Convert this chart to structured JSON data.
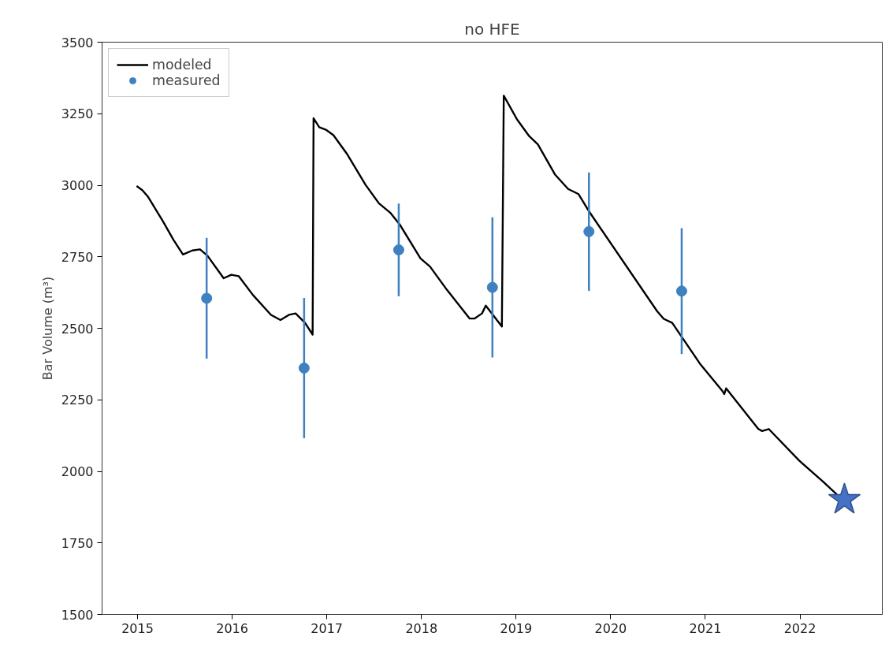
{
  "chart_data": {
    "type": "line",
    "title": "no HFE",
    "ylabel": "Bar Volume (m³)",
    "xlim": [
      2014.625,
      2022.87
    ],
    "ylim": [
      1500,
      3500
    ],
    "xticks": [
      2015,
      2016,
      2017,
      2018,
      2019,
      2020,
      2021,
      2022
    ],
    "yticks": [
      1500,
      1750,
      2000,
      2250,
      2500,
      2750,
      3000,
      3250,
      3500
    ],
    "grid": false,
    "legend": "top left",
    "series": [
      {
        "name": "modeled",
        "color": "#000000",
        "marker": "none",
        "line_style": "solid",
        "x": [
          2014.99,
          2015.05,
          2015.11,
          2015.27,
          2015.38,
          2015.48,
          2015.58,
          2015.66,
          2015.74,
          2015.91,
          2015.99,
          2016.07,
          2016.22,
          2016.41,
          2016.51,
          2016.6,
          2016.67,
          2016.77,
          2016.85,
          2016.86,
          2016.92,
          2016.99,
          2017.07,
          2017.21,
          2017.41,
          2017.55,
          2017.67,
          2017.77,
          2017.99,
          2018.09,
          2018.27,
          2018.51,
          2018.56,
          2018.64,
          2018.68,
          2018.85,
          2018.87,
          2019.01,
          2019.14,
          2019.23,
          2019.41,
          2019.55,
          2019.66,
          2019.77,
          2020.49,
          2020.56,
          2020.65,
          2020.95,
          2021.18,
          2021.2,
          2021.22,
          2021.56,
          2021.6,
          2021.67,
          2021.99,
          2022.24,
          2022.39
        ],
        "values": [
          2997,
          2983,
          2960,
          2873,
          2809,
          2758,
          2772,
          2776,
          2753,
          2675,
          2687,
          2682,
          2616,
          2547,
          2529,
          2547,
          2552,
          2519,
          2478,
          3234,
          3203,
          3194,
          3175,
          3111,
          3001,
          2937,
          2904,
          2863,
          2744,
          2716,
          2634,
          2534,
          2534,
          2552,
          2579,
          2506,
          3313,
          3230,
          3171,
          3143,
          3038,
          2987,
          2969,
          2909,
          2560,
          2533,
          2519,
          2373,
          2281,
          2270,
          2290,
          2148,
          2141,
          2148,
          2038,
          1965,
          1919
        ]
      },
      {
        "name": "measured",
        "type": "scatter",
        "color": "#3f80c0",
        "marker": "circle",
        "x": [
          2015.73,
          2016.76,
          2017.76,
          2018.75,
          2019.77,
          2020.75
        ],
        "values": [
          2605,
          2361,
          2774,
          2643,
          2838,
          2630
        ],
        "errors": [
          211,
          245,
          162,
          245,
          207,
          220
        ]
      },
      {
        "type": "scatter",
        "color": "#4472c4",
        "marker": "star",
        "x": [
          2022.47
        ],
        "values": [
          1901
        ]
      }
    ]
  }
}
